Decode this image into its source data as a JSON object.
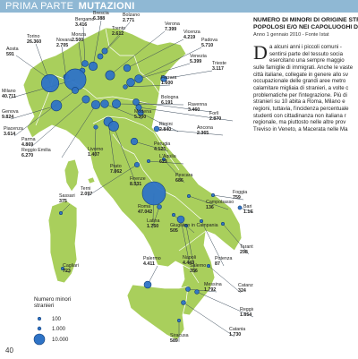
{
  "header": {
    "section": "PRIMA PARTE",
    "topic": "MUTAZIONI"
  },
  "page_number": "40",
  "article": {
    "title_lines": [
      "NUMERO DI MINORI DI ORIGINE STRA",
      "POPOLOSI E/O NEI CAPOLUOGHI DI P"
    ],
    "subtitle": "Anno 1 gennaio 2010 - Fonte Istat",
    "dropcap": "D",
    "body_lines": [
      "a alcuni anni i piccoli comuni -",
      "sentirsi parte del tessuto socia",
      "esercitano una sempre maggio",
      "sulle famiglie di immigrati. Anche le vaste",
      "città italiane, collegate in genere allo sv",
      "occupazionale delle grandi aree metro",
      "calamitare migliaia di stranieri, a volte c",
      "problematiche per l'integrazione. Più di",
      "stranieri su 10 abita a Roma, Milano e",
      "regioni, tuttavia, l'incidenza percentuale",
      "studenti con cittadinanza non italiana r",
      "regionale, ma piuttosto nelle altre prov",
      "Treviso in Veneto, a Macerata nelle Ma"
    ]
  },
  "legend": {
    "title_lines": [
      "Numero minori",
      "stranieri"
    ],
    "items": [
      {
        "label": "100",
        "value": 100
      },
      {
        "label": "1.000",
        "value": 1000
      },
      {
        "label": "10.000",
        "value": 10000
      }
    ]
  },
  "colors": {
    "land": "#a9cf5c",
    "land_edge": "#ffffff",
    "bubble": "#2e73c6",
    "bubble_edge": "#123f7a",
    "leader": "#3a4a5a",
    "header": "#8fb8d4"
  },
  "chart_data": {
    "type": "bubble-map",
    "cities": [
      {
        "name": "Aosta",
        "value": "591",
        "n": 591
      },
      {
        "name": "Torino",
        "value": "26.360",
        "n": 26360
      },
      {
        "name": "Novara",
        "value": "2.705",
        "n": 2705
      },
      {
        "name": "Bergamo",
        "value": "3.416",
        "n": 3416
      },
      {
        "name": "Brescia",
        "value": "6.388",
        "n": 6388
      },
      {
        "name": "Monza",
        "value": "2.500",
        "n": 2500
      },
      {
        "name": "Bolzano",
        "value": "2.771",
        "n": 2771
      },
      {
        "name": "Trento",
        "value": "2.612",
        "n": 2612
      },
      {
        "name": "Verona",
        "value": "7.399",
        "n": 7399
      },
      {
        "name": "Vicenza",
        "value": "4.219",
        "n": 4219
      },
      {
        "name": "Padova",
        "value": "5.710",
        "n": 5710
      },
      {
        "name": "Venezia",
        "value": "5.399",
        "n": 5399
      },
      {
        "name": "Trieste",
        "value": "3.117",
        "n": 3117
      },
      {
        "name": "Milano",
        "value": "40.711",
        "n": 40711
      },
      {
        "name": "Genova",
        "value": "9.824",
        "n": 9824
      },
      {
        "name": "Piacenza",
        "value": "3.614",
        "n": 3614
      },
      {
        "name": "Parma",
        "value": "4.869",
        "n": 4869
      },
      {
        "name": "Reggio Emilia",
        "value": "6.270",
        "n": 6270
      },
      {
        "name": "Modena",
        "value": "5.300",
        "n": 5300
      },
      {
        "name": "Bologna",
        "value": "6.191",
        "n": 6191
      },
      {
        "name": "Ferrara",
        "value": "1.600",
        "n": 1600
      },
      {
        "name": "Ravenna",
        "value": "3.460",
        "n": 3460
      },
      {
        "name": "Forlì",
        "value": "2.870",
        "n": 2870
      },
      {
        "name": "Rimini",
        "value": "2.840",
        "n": 2840
      },
      {
        "name": "Ancona",
        "value": "2.365",
        "n": 2365
      },
      {
        "name": "Livorno",
        "value": "1.407",
        "n": 1407
      },
      {
        "name": "Prato",
        "value": "7.062",
        "n": 7062
      },
      {
        "name": "Firenze",
        "value": "8.531",
        "n": 8531
      },
      {
        "name": "Perugia",
        "value": "4.125",
        "n": 4125
      },
      {
        "name": "L'Aquila",
        "value": "623",
        "n": 623
      },
      {
        "name": "Pescara",
        "value": "686",
        "n": 686
      },
      {
        "name": "Terni",
        "value": "2.097",
        "n": 2097
      },
      {
        "name": "Roma",
        "value": "47.042",
        "n": 47042
      },
      {
        "name": "Latina",
        "value": "1.750",
        "n": 1750
      },
      {
        "name": "Giugliano in Campania",
        "value": "505",
        "n": 505
      },
      {
        "name": "Napoli",
        "value": "4.443",
        "n": 4443
      },
      {
        "name": "Salerno",
        "value": "356",
        "n": 356
      },
      {
        "name": "Campobasso",
        "value": "136",
        "n": 136
      },
      {
        "name": "Foggia",
        "value": "759",
        "n": 759
      },
      {
        "name": "Bari",
        "value": "1.163",
        "n": 1163
      },
      {
        "name": "Taranto",
        "value": "298",
        "n": 298
      },
      {
        "name": "Potenza",
        "value": "87",
        "n": 87
      },
      {
        "name": "Sassari",
        "value": "375",
        "n": 375
      },
      {
        "name": "Cagliari",
        "value": "723",
        "n": 723
      },
      {
        "name": "Catanzaro",
        "value": "324",
        "n": 324
      },
      {
        "name": "Reggio Calabria",
        "value": "1.654",
        "n": 1654
      },
      {
        "name": "Messina",
        "value": "1.792",
        "n": 1792
      },
      {
        "name": "Palermo",
        "value": "4.411",
        "n": 4411
      },
      {
        "name": "Catania",
        "value": "1.730",
        "n": 1730
      },
      {
        "name": "Siracusa",
        "value": "589",
        "n": 589
      }
    ]
  }
}
